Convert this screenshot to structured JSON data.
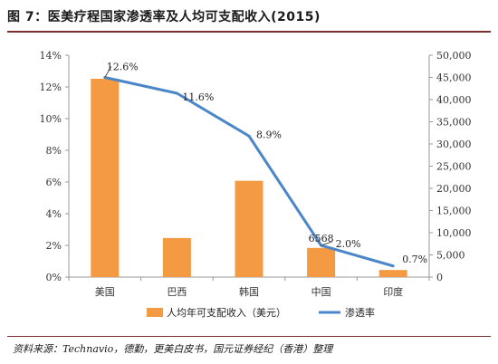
{
  "figure": {
    "title": "图 7：医美疗程国家渗透率及人均可支配收入(2015)",
    "source": "资料来源：Technavio，德勤，更美白皮书，国元证券经纪（香港）整理"
  },
  "chart_data": {
    "type": "bar+line",
    "categories": [
      "美国",
      "巴西",
      "韩国",
      "中国",
      "印度"
    ],
    "series": [
      {
        "name": "人均年可支配收入（美元）",
        "type": "bar",
        "axis": "right",
        "color": "#f39a43",
        "values": [
          44700,
          8800,
          21700,
          6568,
          1600
        ]
      },
      {
        "name": "渗透率",
        "type": "line",
        "axis": "left",
        "color": "#4a86c8",
        "values": [
          12.6,
          11.6,
          8.9,
          2.0,
          0.7
        ]
      }
    ],
    "data_labels": [
      {
        "series": 1,
        "index": 0,
        "text": "12.6%"
      },
      {
        "series": 1,
        "index": 1,
        "text": "11.6%"
      },
      {
        "series": 1,
        "index": 2,
        "text": "8.9%"
      },
      {
        "series": 1,
        "index": 3,
        "text": "2.0%"
      },
      {
        "series": 1,
        "index": 4,
        "text": "0.7%"
      },
      {
        "series": 0,
        "index": 3,
        "text": "6568"
      }
    ],
    "y_left": {
      "min": 0,
      "max": 14,
      "step": 2,
      "tick_labels": [
        "0%",
        "2%",
        "4%",
        "6%",
        "8%",
        "10%",
        "12%",
        "14%"
      ]
    },
    "y_right": {
      "min": 0,
      "max": 50000,
      "step": 5000,
      "tick_labels": [
        "0",
        "5,000",
        "10,000",
        "15,000",
        "20,000",
        "25,000",
        "30,000",
        "35,000",
        "40,000",
        "45,000",
        "50,000"
      ]
    },
    "legend_position": "bottom",
    "grid": false
  }
}
